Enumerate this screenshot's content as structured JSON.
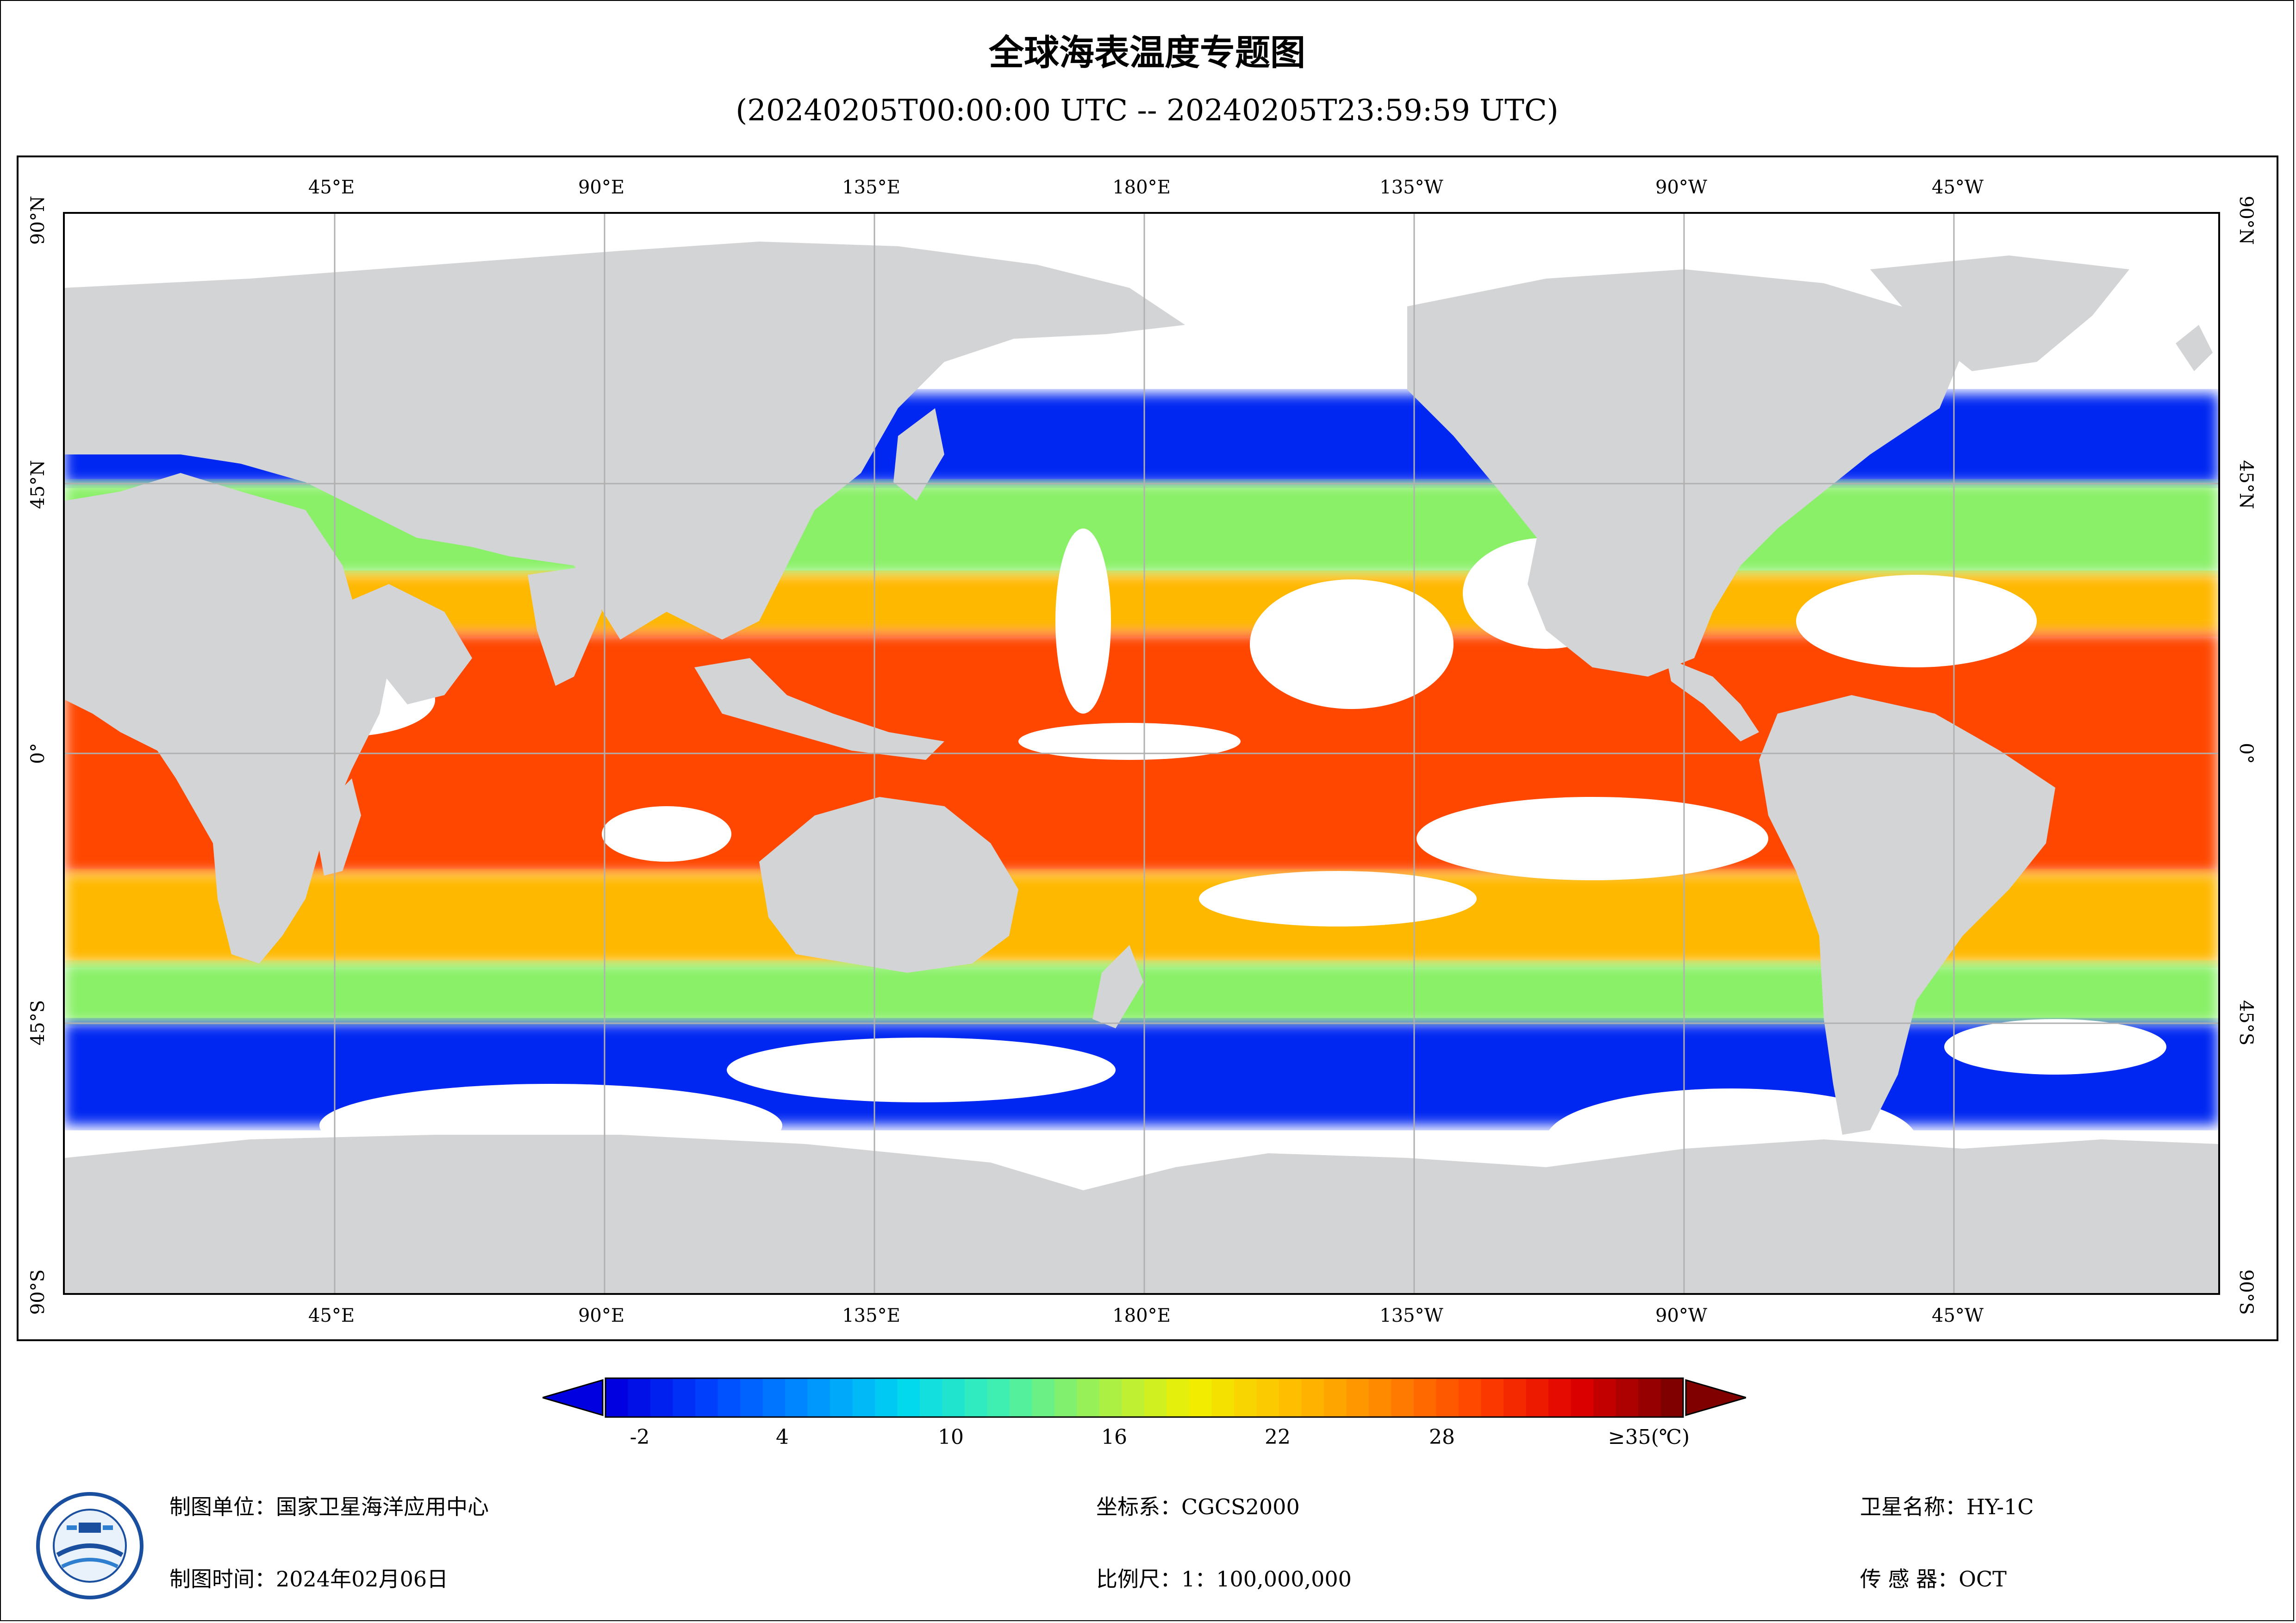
{
  "title": "全球海表温度专题图",
  "subtitle": "(20240205T00:00:00 UTC -- 20240205T23:59:59 UTC)",
  "axes": {
    "top_labels": [
      "45°E",
      "90°E",
      "135°E",
      "180°E",
      "135°W",
      "90°W",
      "45°W"
    ],
    "bottom_labels": [
      "45°E",
      "90°E",
      "135°E",
      "180°E",
      "135°W",
      "90°W",
      "45°W"
    ],
    "left_labels": [
      "90°N",
      "45°N",
      "0°",
      "45°S",
      "90°S"
    ],
    "right_labels": [
      "90°N",
      "45°N",
      "0°",
      "45°S",
      "90°S"
    ]
  },
  "colorbar": {
    "labels": [
      "-2",
      "4",
      "10",
      "16",
      "22",
      "28",
      "≥35(℃)"
    ],
    "range": [
      -2,
      35
    ],
    "stops": [
      "#0000e0",
      "#0044ff",
      "#0090ff",
      "#00d8f0",
      "#40f0b0",
      "#a0f050",
      "#f0f000",
      "#ffc000",
      "#ff8800",
      "#ff4000",
      "#e00000",
      "#800000"
    ],
    "under_color": "#0000e0",
    "over_color": "#800000"
  },
  "footer": {
    "org_label": "制图单位：",
    "org_value": "国家卫星海洋应用中心",
    "time_label": "制图时间：",
    "time_value": "2024年02月06日",
    "crs_label": "坐标系：",
    "crs_value": "CGCS2000",
    "scale_label": "比例尺：",
    "scale_value": "1：100,000,000",
    "sat_label": "卫星名称：",
    "sat_value": "HY-1C",
    "sensor_label": "传 感 器：",
    "sensor_value": "OCT"
  },
  "map": {
    "land_color": "#d3d4d6",
    "ocean_nodata_color": "#ffffff",
    "grid": true,
    "sst_bands": [
      {
        "lat_from": 60,
        "lat_to": 45,
        "temp": 0
      },
      {
        "lat_from": 45,
        "lat_to": 30,
        "temp": 14
      },
      {
        "lat_from": 30,
        "lat_to": 20,
        "temp": 22
      },
      {
        "lat_from": 20,
        "lat_to": -20,
        "temp": 28
      },
      {
        "lat_from": -20,
        "lat_to": -35,
        "temp": 22
      },
      {
        "lat_from": -35,
        "lat_to": -45,
        "temp": 14
      },
      {
        "lat_from": -45,
        "lat_to": -62,
        "temp": 0
      }
    ]
  }
}
